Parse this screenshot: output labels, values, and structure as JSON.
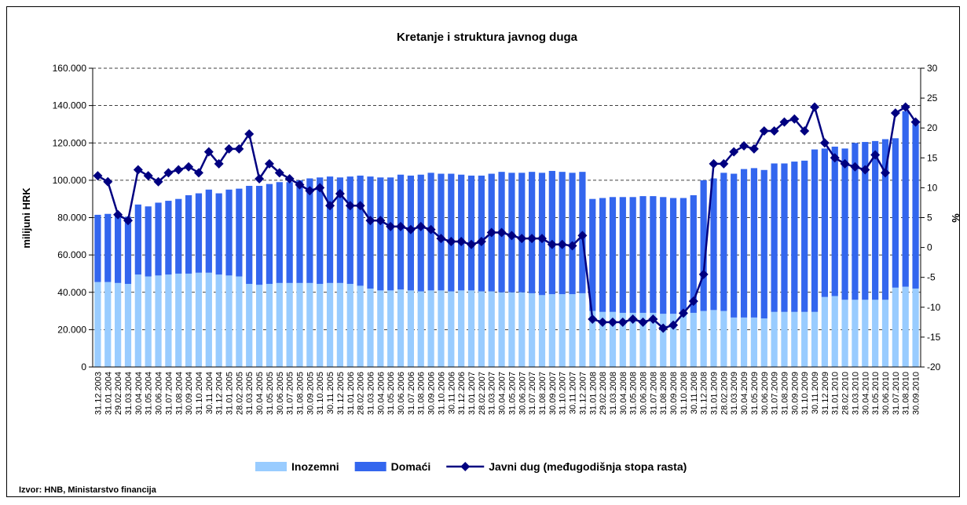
{
  "chart_data": {
    "type": "bar_line",
    "title": "Kretanje i struktura javnog duga",
    "ylabel": "milijuni HRK",
    "y2label": "%",
    "source": "Izvor: HNB, Ministarstvo financija",
    "categories": [
      "31.12.2003",
      "31.01.2004",
      "29.02.2004",
      "31.03.2004",
      "30.04.2004",
      "31.05.2004",
      "30.06.2004",
      "31.07.2004",
      "31.08.2004",
      "30.09.2004",
      "31.10.2004",
      "30.11.2004",
      "31.12.2004",
      "31.01.2005",
      "28.02.2005",
      "31.03.2005",
      "30.04.2005",
      "31.05.2005",
      "30.06.2005",
      "31.07.2005",
      "31.08.2005",
      "30.09.2005",
      "31.10.2005",
      "30.11.2005",
      "31.12.2005",
      "31.01.2006",
      "28.02.2006",
      "31.03.2006",
      "30.04.2006",
      "31.05.2006",
      "30.06.2006",
      "31.07.2006",
      "31.08.2006",
      "30.09.2006",
      "31.10.2006",
      "30.11.2006",
      "31.12.2006",
      "31.01.2007",
      "28.02.2007",
      "31.03.2007",
      "30.04.2007",
      "31.05.2007",
      "30.06.2007",
      "31.07.2007",
      "31.08.2007",
      "30.09.2007",
      "31.10.2007",
      "30.11.2007",
      "31.12.2007",
      "31.01.2008",
      "29.02.2008",
      "31.03.2008",
      "30.04.2008",
      "31.05.2008",
      "30.06.2008",
      "31.07.2008",
      "31.08.2008",
      "30.09.2008",
      "31.10.2008",
      "30.11.2008",
      "31.12.2008",
      "31.01.2009",
      "28.02.2009",
      "31.03.2009",
      "30.04.2009",
      "31.05.2009",
      "30.06.2009",
      "31.07.2009",
      "31.08.2009",
      "30.09.2009",
      "31.10.2009",
      "30.11.2009",
      "31.12.2009",
      "31.01.2010",
      "28.02.2010",
      "31.03.2010",
      "30.04.2010",
      "31.05.2010",
      "30.06.2010",
      "31.07.2010",
      "31.08.2010",
      "30.09.2010"
    ],
    "series": [
      {
        "name": "Inozemni",
        "color": "#99ccff",
        "kind": "bar",
        "values": [
          45500,
          45500,
          45000,
          44500,
          49500,
          48500,
          49000,
          49500,
          50000,
          50000,
          50500,
          50500,
          49500,
          49000,
          48500,
          44500,
          44000,
          44500,
          45000,
          45000,
          45000,
          45000,
          44500,
          45000,
          45000,
          44500,
          43500,
          42000,
          41000,
          41000,
          41500,
          41000,
          40500,
          41000,
          41000,
          40500,
          41000,
          41000,
          40500,
          40500,
          40000,
          40000,
          40000,
          39500,
          38500,
          39000,
          39000,
          39000,
          39500,
          30000,
          29500,
          29500,
          29000,
          29000,
          29000,
          29000,
          28500,
          28500,
          28500,
          29000,
          30000,
          30500,
          30000,
          26500,
          26500,
          26500,
          26000,
          29500,
          29500,
          29500,
          29500,
          29500,
          37500,
          38000,
          36000,
          36000,
          36000,
          36000,
          36000,
          42500,
          43000,
          42000
        ]
      },
      {
        "name": "Domaći",
        "color": "#3366ee",
        "kind": "bar",
        "values": [
          36000,
          36500,
          36000,
          36000,
          37500,
          37500,
          39000,
          39500,
          40000,
          42000,
          42500,
          44500,
          43500,
          46000,
          47000,
          52500,
          53000,
          53500,
          54000,
          54000,
          55000,
          56000,
          57000,
          57000,
          56500,
          57500,
          59000,
          60000,
          60500,
          60500,
          61500,
          61500,
          62500,
          63000,
          62500,
          63000,
          62000,
          61500,
          62000,
          63000,
          64500,
          64000,
          64000,
          65000,
          65500,
          66000,
          65500,
          65000,
          65000,
          60000,
          61000,
          61500,
          62000,
          62000,
          62500,
          62500,
          62500,
          62000,
          62000,
          63000,
          70000,
          70500,
          74000,
          77000,
          79500,
          80000,
          79500,
          79500,
          79500,
          80500,
          81000,
          87000,
          79500,
          80000,
          81000,
          84000,
          84500,
          85000,
          86000,
          80000,
          94000,
          88000
        ]
      },
      {
        "name": "Javni dug (međugodišnja stopa rasta)",
        "color": "#000080",
        "kind": "line",
        "axis": "y2",
        "values": [
          12,
          11,
          5.5,
          4.5,
          13,
          12,
          11,
          12.5,
          13,
          13.5,
          12.5,
          16,
          14,
          16.5,
          16.5,
          19,
          11.5,
          14,
          12.5,
          11.5,
          10.5,
          9.5,
          10,
          7,
          9,
          7,
          7,
          4.5,
          4.5,
          3.5,
          3.5,
          3,
          3.5,
          3,
          1.5,
          1,
          1,
          0.5,
          1,
          2.5,
          2.5,
          2,
          1.5,
          1.5,
          1.5,
          0.5,
          0.5,
          0.3,
          2,
          -12,
          -12.5,
          -12.5,
          -12.5,
          -12,
          -12.5,
          -12,
          -13.5,
          -13,
          -11,
          -9,
          -4.5,
          14,
          14,
          16,
          17,
          16.5,
          19.5,
          19.5,
          21,
          21.5,
          19.5,
          23.5,
          17.5,
          15,
          14,
          13.5,
          13,
          15.5,
          12.5,
          22.5,
          23.5,
          21
        ]
      }
    ],
    "ylim": [
      0,
      160000
    ],
    "yticks": [
      0,
      {
        "value": 20000,
        "label": "20.000"
      },
      {
        "value": 40000,
        "label": "40.000"
      },
      {
        "value": 60000,
        "label": "60.000"
      },
      {
        "value": 80000,
        "label": "80.000"
      },
      {
        "value": 100000,
        "label": "100.000"
      },
      {
        "value": 120000,
        "label": "120.000"
      },
      {
        "value": 140000,
        "label": "140.000"
      },
      {
        "value": 160000,
        "label": "160.000"
      }
    ],
    "y2lim": [
      -20,
      30
    ],
    "y2ticks": [
      -20,
      -15,
      -10,
      -5,
      0,
      5,
      10,
      15,
      20,
      25,
      30
    ],
    "grid": true,
    "legend": "bottom"
  }
}
